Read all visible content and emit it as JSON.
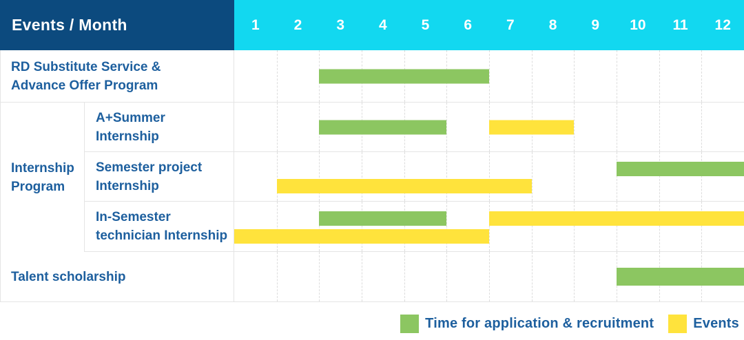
{
  "header": {
    "label": "Events / Month",
    "months": [
      "1",
      "2",
      "3",
      "4",
      "5",
      "6",
      "7",
      "8",
      "9",
      "10",
      "11",
      "12"
    ]
  },
  "legend": {
    "items": [
      {
        "label": "Time for application & recruitment",
        "type": "application"
      },
      {
        "label": "Events",
        "type": "event"
      }
    ]
  },
  "colors": {
    "header_navy": "#0c4a7e",
    "header_cyan": "#12d8f0",
    "application_green": "#8cc661",
    "event_yellow": "#ffe33c",
    "text_blue": "#1d5f9e",
    "grid_line": "#dcdcdc",
    "row_border": "#e4e4e4"
  },
  "chart_data": {
    "type": "bar",
    "subtype": "gantt-schedule",
    "title": "Events / Month",
    "x_axis": {
      "label": "Month",
      "ticks": [
        "1",
        "2",
        "3",
        "4",
        "5",
        "6",
        "7",
        "8",
        "9",
        "10",
        "11",
        "12"
      ],
      "range": [
        1,
        12
      ]
    },
    "legend_entries": [
      "Time for application & recruitment",
      "Events"
    ],
    "legend_position": "bottom-right",
    "grid": "dashed-vertical-month-lines",
    "group_label": "Internship Program",
    "group_label_lines": [
      "Internship",
      "Program"
    ],
    "rows": [
      {
        "id": "rd-substitute-service",
        "group": null,
        "label": "RD Substitute Service & Advance Offer Program",
        "label_lines": [
          "RD Substitute Service &",
          "Advance Offer Program"
        ],
        "bars": [
          {
            "series": "Time for application & recruitment",
            "start_month": 3,
            "end_month": 6,
            "lane": "single"
          }
        ]
      },
      {
        "id": "a-plus-summer-internship",
        "group": "Internship Program",
        "label": "A+Summer Internship",
        "label_lines": [
          "A+Summer",
          "Internship"
        ],
        "bars": [
          {
            "series": "Time for application & recruitment",
            "start_month": 3,
            "end_month": 5,
            "lane": "single"
          },
          {
            "series": "Events",
            "start_month": 7,
            "end_month": 8,
            "lane": "single"
          }
        ]
      },
      {
        "id": "semester-project-internship",
        "group": "Internship Program",
        "label": "Semester project Internship",
        "label_lines": [
          "Semester project",
          "Internship"
        ],
        "bars": [
          {
            "series": "Time for application & recruitment",
            "start_month": 10,
            "end_month": 12,
            "lane": "top"
          },
          {
            "series": "Events",
            "start_month": 2,
            "end_month": 7,
            "lane": "bottom"
          }
        ]
      },
      {
        "id": "in-semester-technician-internship",
        "group": "Internship Program",
        "label": "In-Semester technician Internship",
        "label_lines": [
          "In-Semester",
          "technician Internship"
        ],
        "bars": [
          {
            "series": "Time for application & recruitment",
            "start_month": 3,
            "end_month": 5,
            "lane": "top"
          },
          {
            "series": "Events",
            "start_month": 7,
            "end_month": 12,
            "lane": "top"
          },
          {
            "series": "Events",
            "start_month": 1,
            "end_month": 6,
            "lane": "bottom"
          }
        ]
      },
      {
        "id": "talent-scholarship",
        "group": null,
        "label": "Talent scholarship",
        "label_lines": [
          "Talent scholarship"
        ],
        "bars": [
          {
            "series": "Time for application & recruitment",
            "start_month": 10,
            "end_month": 12,
            "lane": "single"
          }
        ]
      }
    ]
  }
}
